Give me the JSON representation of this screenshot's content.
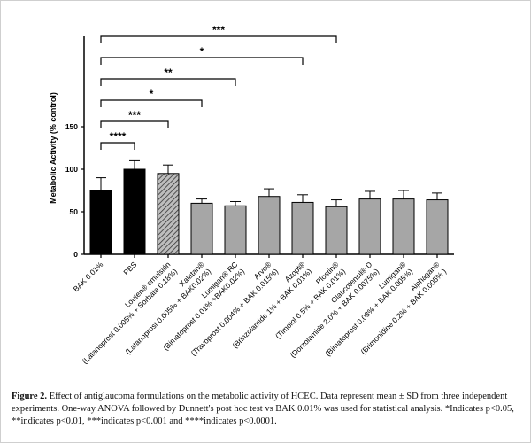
{
  "chart_data": {
    "type": "bar",
    "y_label": "Metabolic Activity (% control)",
    "categories": [
      "BAK 0.01%",
      "PBS",
      "Louten® emulsión",
      "Xalatan®",
      "Lumigan® RC",
      "Arvo®",
      "Azopt®",
      "Plostin®",
      "Glaucotensil® D",
      "Lumigan®",
      "Alphagan®"
    ],
    "category_details": [
      null,
      null,
      "(Latanoprost 0.005% + Sorbate 0.18%)",
      "(Latanoprost 0.005% + BAK0.02%)",
      "(Bimatoprost 0.01% +BAK0.02%)",
      "(Travoprost 0.004% + BAK 0.015%)",
      "(Brinzolamide 1% + BAK 0.01%)",
      "(Timolol 0.5% + BAK 0.01%)",
      "(Dorzolamide 2.0% + BAK 0.0075%)",
      "(Bimatoprost 0.03% + BAK 0.005%)",
      "(Brimonidine 0.2% + BAK 0.005% )"
    ],
    "values": [
      75,
      100,
      95,
      60,
      57,
      68,
      61,
      56,
      65,
      65,
      64
    ],
    "errors": [
      15,
      10,
      10,
      5,
      5,
      9,
      9,
      8,
      9,
      10,
      8
    ],
    "colors": [
      "#000000",
      "#000000",
      "#8c8c8c",
      "#a6a6a6",
      "#a6a6a6",
      "#a6a6a6",
      "#a6a6a6",
      "#a6a6a6",
      "#a6a6a6",
      "#a6a6a6",
      "#a6a6a6"
    ],
    "hatched": [
      false,
      false,
      true,
      false,
      false,
      false,
      false,
      false,
      false,
      false,
      false
    ],
    "ylim": [
      0,
      250
    ],
    "yticks": [
      0,
      50,
      100,
      150
    ],
    "significance": [
      {
        "compare": "PBS",
        "label": "****"
      },
      {
        "compare": "Louten® emulsión",
        "label": "***"
      },
      {
        "compare": "Xalatan®",
        "label": "*"
      },
      {
        "compare": "Lumigan® RC",
        "label": "**"
      },
      {
        "compare": "Azopt®",
        "label": "*"
      },
      {
        "compare": "Plostin®",
        "label": "***"
      }
    ]
  },
  "caption": {
    "figure_label": "Figure 2.",
    "text": "Effect of antiglaucoma formulations on the metabolic activity of HCEC. Data represent mean ± SD from three independent experiments. One-way ANOVA followed by Dunnett's post hoc test vs BAK 0.01% was used for statistical analysis. *Indicates p<0.05, **indicates p<0.01, ***indicates p<0.001 and ****indicates p<0.0001."
  }
}
